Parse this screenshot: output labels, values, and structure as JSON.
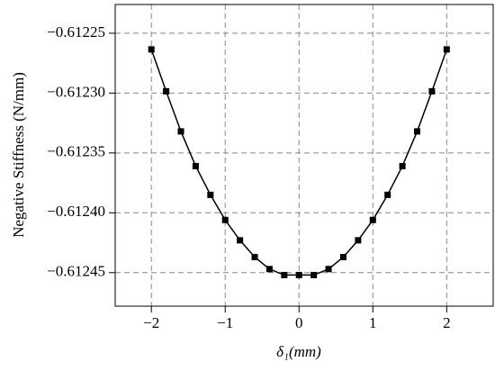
{
  "chart_data": {
    "type": "line",
    "x_label": "δ₁(mm)",
    "y_label": "Negative Stiffness (N/mm)",
    "x": [
      -2,
      -1.8,
      -1.6,
      -1.4,
      -1.2,
      -1,
      -0.8,
      -0.6,
      -0.4,
      -0.2,
      0,
      0.2,
      0.4,
      0.6,
      0.8,
      1,
      1.2,
      1.4,
      1.6,
      1.8,
      2
    ],
    "series": [
      {
        "color": "#000000",
        "values": [
          -0.6122635,
          -0.6122985,
          -0.612332,
          -0.612361,
          -0.612385,
          -0.612406,
          -0.612423,
          -0.612437,
          -0.612447,
          -0.612452,
          -0.612452,
          -0.612452,
          -0.612447,
          -0.612437,
          -0.612423,
          -0.612406,
          -0.612385,
          -0.612361,
          -0.612332,
          -0.6122985,
          -0.6122635
        ]
      }
    ],
    "xlim": [
      -2.49,
      2.63
    ],
    "ylim": [
      -0.612478,
      -0.612226
    ],
    "xticks": [
      {
        "value": -2,
        "label": "−2"
      },
      {
        "value": -1,
        "label": "−1"
      },
      0,
      1,
      2
    ],
    "yticks": [
      {
        "value": -0.61225,
        "label": "−0.61225"
      },
      {
        "value": -0.6123,
        "label": "−0.61230"
      },
      {
        "value": -0.61235,
        "label": "−0.61235"
      },
      {
        "value": -0.6124,
        "label": "−0.61240"
      },
      {
        "value": -0.61245,
        "label": "−0.61245"
      }
    ],
    "grid": true
  }
}
